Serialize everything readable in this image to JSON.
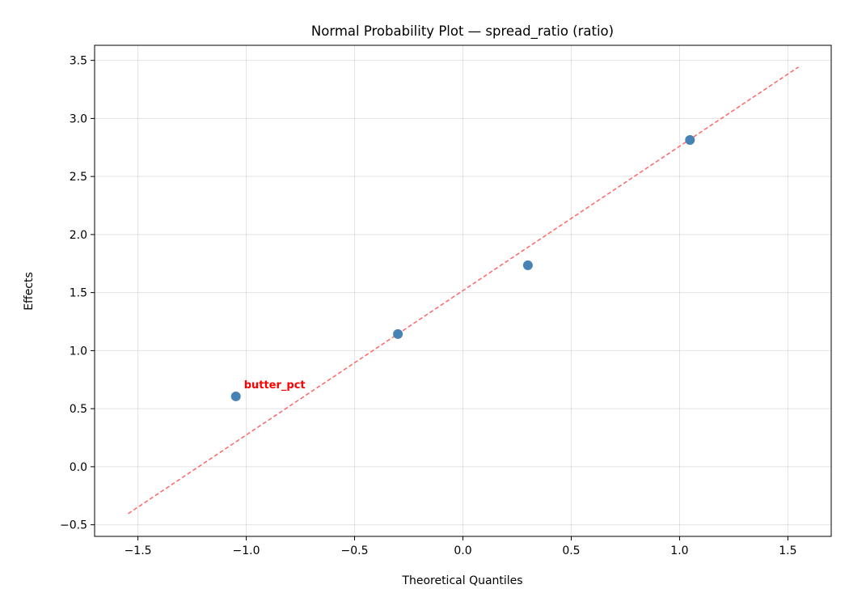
{
  "chart_data": {
    "type": "scatter",
    "title": "Normal Probability Plot — spread_ratio (ratio)",
    "xlabel": "Theoretical Quantiles",
    "ylabel": "Effects",
    "xlim": [
      -1.7,
      1.7
    ],
    "ylim": [
      -0.6,
      3.63
    ],
    "xticks": [
      -1.5,
      -1.0,
      -0.5,
      0.0,
      0.5,
      1.0,
      1.5
    ],
    "xtick_labels": [
      "−1.5",
      "−1.0",
      "−0.5",
      "0.0",
      "0.5",
      "1.0",
      "1.5"
    ],
    "yticks": [
      -0.5,
      0.0,
      0.5,
      1.0,
      1.5,
      2.0,
      2.5,
      3.0,
      3.5
    ],
    "ytick_labels": [
      "−0.5",
      "0.0",
      "0.5",
      "1.0",
      "1.5",
      "2.0",
      "2.5",
      "3.0",
      "3.5"
    ],
    "grid": true,
    "points": [
      {
        "x": -1.048,
        "y": 0.606,
        "label": "butter_pct"
      },
      {
        "x": -0.3,
        "y": 1.143
      },
      {
        "x": 0.3,
        "y": 1.735
      },
      {
        "x": 1.048,
        "y": 2.815
      }
    ],
    "reference_line": {
      "x": [
        -1.545,
        1.549
      ],
      "y": [
        -0.404,
        3.443
      ]
    },
    "colors": {
      "points": "#4682b4",
      "reference_line": "#ff6666",
      "annotation": "#ff0000"
    }
  }
}
